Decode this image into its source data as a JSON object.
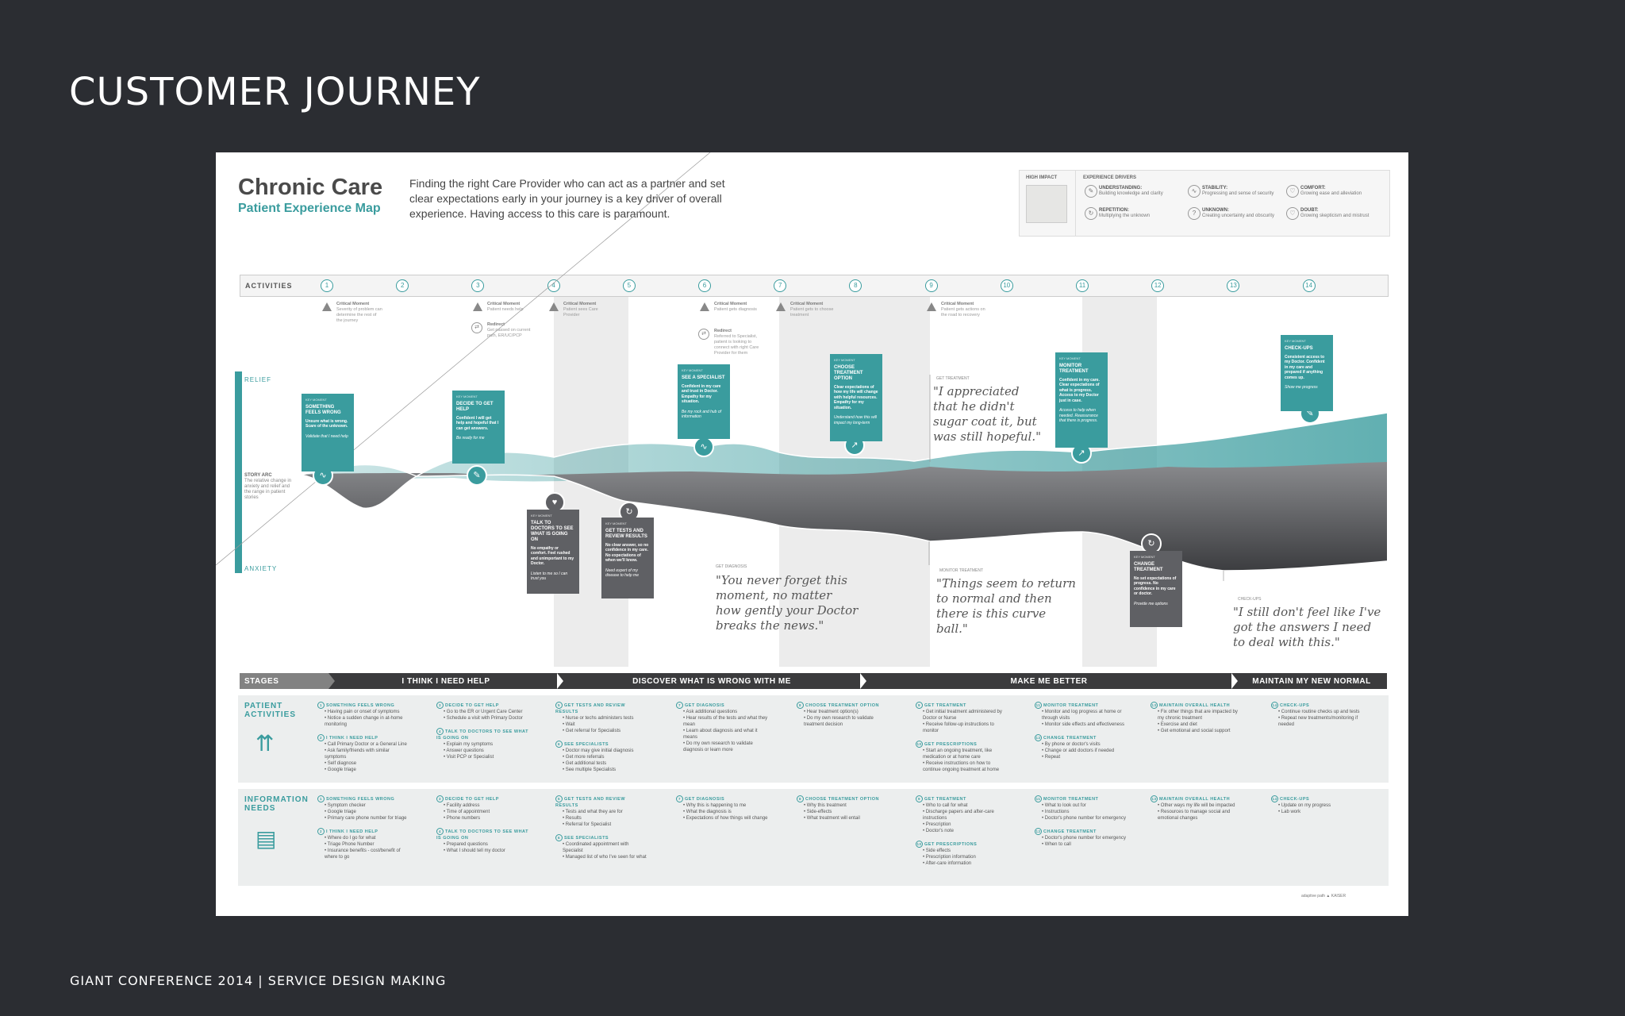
{
  "slide": {
    "title": "CUSTOMER JOURNEY",
    "footer": "GIANT CONFERENCE 2014 |  SERVICE DESIGN MAKING"
  },
  "poster": {
    "title": "Chronic Care",
    "subtitle": "Patient Experience Map",
    "intro": "Finding the right Care Provider who can act as a partner and set clear expectations early in your journey is a key driver of overall experience. Having access to this care is paramount."
  },
  "legend": {
    "high_impact": "HIGH IMPACT",
    "drivers_label": "EXPERIENCE DRIVERS",
    "drivers": [
      {
        "icon": "understanding-icon",
        "name": "UNDERSTANDING:",
        "desc": "Building knowledge and clarity"
      },
      {
        "icon": "stability-icon",
        "name": "STABILITY:",
        "desc": "Progressing and sense of security"
      },
      {
        "icon": "comfort-icon",
        "name": "COMFORT:",
        "desc": "Growing ease and alleviation"
      },
      {
        "icon": "repetition-icon",
        "name": "REPETITION:",
        "desc": "Multiplying the unknown"
      },
      {
        "icon": "unknown-icon",
        "name": "UNKNOWN:",
        "desc": "Creating uncertainty and obscurity"
      },
      {
        "icon": "doubt-icon",
        "name": "DOUBT:",
        "desc": "Growing skepticism and mistrust"
      }
    ]
  },
  "activities": {
    "label": "ACTIVITIES",
    "steps": [
      "1",
      "2",
      "3",
      "4",
      "5",
      "6",
      "7",
      "8",
      "9",
      "10",
      "11",
      "12",
      "13",
      "14"
    ]
  },
  "critical_moments": [
    {
      "title": "Critical Moment",
      "text": "Severity of problem can determine the rest of the journey"
    },
    {
      "title": "Critical Moment",
      "text": "Patient needs help"
    },
    {
      "title": "Critical Moment",
      "text": "Patient sees Care Provider"
    },
    {
      "title": "Critical Moment",
      "text": "Patient gets diagnosis"
    },
    {
      "title": "Critical Moment",
      "text": "Patient gets to choose treatment"
    },
    {
      "title": "Critical Moment",
      "text": "Patient gets actions on the road to recovery"
    }
  ],
  "redirects": [
    {
      "title": "Redirect",
      "text": "Get passed on current path, ER/UC/PCP"
    },
    {
      "title": "Redirect",
      "text": "Referred to Specialist, patient is looking to connect with right Care Provider for them"
    }
  ],
  "axis": {
    "relief": "RELIEF",
    "anxiety": "ANXIETY",
    "story_title": "STORY ARC",
    "story_text": "The relative change in anxiety and relief and the range in patient stories"
  },
  "cards": [
    {
      "label": "KEY MOMENT",
      "title": "SOMETHING FEELS WRONG",
      "text": "Unsure what is wrong. Scare of the unknown.",
      "need": "Validate that I need help"
    },
    {
      "label": "KEY MOMENT",
      "title": "DECIDE TO GET HELP",
      "text": "Confident I will get help and hopeful that I can get answers.",
      "need": "Be ready for me"
    },
    {
      "label": "KEY MOMENT",
      "title": "TALK TO DOCTORS TO SEE WHAT IS GOING ON",
      "text": "No empathy or comfort. Feel rushed and unimportant to my Doctor.",
      "need": "Listen to me so I can trust you"
    },
    {
      "label": "KEY MOMENT",
      "title": "GET TESTS AND REVIEW RESULTS",
      "text": "No clear answer, so no confidence in my care. No expectations of when we'll know.",
      "need": "Need expert of my disease to help me"
    },
    {
      "label": "KEY MOMENT",
      "title": "SEE A SPECIALIST",
      "text": "Confident in my care and trust in Doctor. Empathy for my situation.",
      "need": "Be my rock and hub of information"
    },
    {
      "label": "KEY MOMENT",
      "title": "CHOOSE TREATMENT OPTION",
      "text": "Clear expectations of how my life will change with helpful resources. Empathy for my situation.",
      "need": "Understand how this will impact my long-term"
    },
    {
      "label": "KEY MOMENT",
      "title": "MONITOR TREATMENT",
      "text": "Confident in my care. Clear expectations of what is progress. Access to my Doctor just in case.",
      "need": "Access to help when needed. Reassurance that there is progress."
    },
    {
      "label": "KEY MOMENT",
      "title": "CHANGE TREATMENT",
      "text": "No set expectations of progress. No confidence in my care or doctor.",
      "need": "Provide me options"
    },
    {
      "label": "KEY MOMENT",
      "title": "CHECK-UPS",
      "text": "Consistent access to my Doctor. Confident in my care and prepared if anything comes up.",
      "need": "Show me progress"
    }
  ],
  "quotes": [
    {
      "label": "GET TREATMENT",
      "text": "\"I appreciated that he didn't sugar coat it, but was still hopeful.\""
    },
    {
      "label": "GET DIAGNOSIS",
      "text": "\"You never forget this moment, no matter how gently your Doctor breaks the news.\""
    },
    {
      "label": "MONITOR TREATMENT",
      "text": "\"Things seem to return to normal and then there is this curve ball.\""
    },
    {
      "label": "CHECK-UPS",
      "text": "\"I still don't feel like I've got the answers I need to deal with this.\""
    }
  ],
  "stages": {
    "label": "STAGES",
    "items": [
      "I THINK I NEED HELP",
      "DISCOVER WHAT IS WRONG WITH ME",
      "MAKE ME BETTER",
      "MAINTAIN MY NEW NORMAL"
    ]
  },
  "patient_activities": {
    "title1": "PATIENT",
    "title2": "ACTIVITIES",
    "columns": [
      [
        {
          "n": "1",
          "h": "SOMETHING FEELS WRONG",
          "items": [
            "Having pain or onset of symptoms",
            "Notice a sudden change in at-home monitoring"
          ]
        },
        {
          "n": "2",
          "h": "I THINK I NEED HELP",
          "items": [
            "Call Primary Doctor or a General Line",
            "Ask family/friends with similar symptoms",
            "Self diagnose",
            "Google triage"
          ]
        }
      ],
      [
        {
          "n": "3",
          "h": "DECIDE TO GET HELP",
          "items": [
            "Go to the ER or Urgent Care Center",
            "Schedule a visit with Primary Doctor"
          ]
        },
        {
          "n": "4",
          "h": "TALK TO DOCTORS TO SEE WHAT IS GOING ON",
          "items": [
            "Explain my symptoms",
            "Answer questions",
            "Visit PCP or Specialist"
          ]
        }
      ],
      [
        {
          "n": "5",
          "h": "GET TESTS AND REVIEW RESULTS",
          "items": [
            "Nurse or techs administers tests",
            "Wait",
            "Get referral for Specialists"
          ]
        },
        {
          "n": "6",
          "h": "SEE SPECIALISTS",
          "items": [
            "Doctor may give initial diagnosis",
            "Get more referrals",
            "Get additional tests",
            "See multiple Specialists"
          ]
        }
      ],
      [
        {
          "n": "7",
          "h": "GET DIAGNOSIS",
          "items": [
            "Ask additional questions",
            "Hear results of the tests and what they mean",
            "Learn about diagnosis and what it means",
            "Do my own research to validate diagnosis or learn more"
          ]
        }
      ],
      [
        {
          "n": "8",
          "h": "CHOOSE TREATMENT OPTION",
          "items": [
            "Hear treatment option(s)",
            "Do my own research to validate treatment decision"
          ]
        }
      ],
      [
        {
          "n": "9",
          "h": "GET TREATMENT",
          "items": [
            "Get initial treatment administered by Doctor or Nurse",
            "Receive follow-up instructions to monitor"
          ]
        },
        {
          "n": "10",
          "h": "GET PRESCRIPTIONS",
          "items": [
            "Start an ongoing treatment, like medication or at home care",
            "Receive instructions on how to continue ongoing treatment at home"
          ]
        }
      ],
      [
        {
          "n": "11",
          "h": "MONITOR TREATMENT",
          "items": [
            "Monitor and log progress at home or through visits",
            "Monitor side effects and effectiveness"
          ]
        },
        {
          "n": "12",
          "h": "CHANGE TREATMENT",
          "items": [
            "By phone or doctor's visits",
            "Change or add doctors if needed",
            "Repeat"
          ]
        }
      ],
      [
        {
          "n": "13",
          "h": "MAINTAIN OVERALL HEALTH",
          "items": [
            "Fix other things that are impacted by my chronic treatment",
            "Exercise and diet",
            "Get emotional and social support"
          ]
        }
      ],
      [
        {
          "n": "14",
          "h": "CHECK-UPS",
          "items": [
            "Continue routine checks up and tests",
            "Repeat new treatments/monitoring if needed"
          ]
        }
      ]
    ]
  },
  "information_needs": {
    "title1": "INFORMATION",
    "title2": "NEEDS",
    "columns": [
      [
        {
          "n": "1",
          "h": "SOMETHING FEELS WRONG",
          "items": [
            "Symptom checker",
            "Google triage",
            "Primary care phone number for triage"
          ]
        },
        {
          "n": "2",
          "h": "I THINK I NEED HELP",
          "items": [
            "Where do I go for what",
            "Triage Phone Number",
            "Insurance benefits - cost/benefit of where to go"
          ]
        }
      ],
      [
        {
          "n": "3",
          "h": "DECIDE TO GET HELP",
          "items": [
            "Facility address",
            "Time of appointment",
            "Phone numbers"
          ]
        },
        {
          "n": "4",
          "h": "TALK TO DOCTORS TO SEE WHAT IS GOING ON",
          "items": [
            "Prepared questions",
            "What I should tell my doctor"
          ]
        }
      ],
      [
        {
          "n": "5",
          "h": "GET TESTS AND REVIEW RESULTS",
          "items": [
            "Tests and what they are for",
            "Results",
            "Referral for Specialist"
          ]
        },
        {
          "n": "6",
          "h": "SEE SPECIALISTS",
          "items": [
            "Coordinated appointment with Specialist",
            "Managed list of who I've seen for what"
          ]
        }
      ],
      [
        {
          "n": "7",
          "h": "GET DIAGNOSIS",
          "items": [
            "Why this is happening to me",
            "What the diagnosis is",
            "Expectations of how things will change"
          ]
        }
      ],
      [
        {
          "n": "8",
          "h": "CHOOSE TREATMENT OPTION",
          "items": [
            "Why this treatment",
            "Side-effects",
            "What treatment will entail"
          ]
        }
      ],
      [
        {
          "n": "9",
          "h": "GET TREATMENT",
          "items": [
            "Who to call for what",
            "Discharge papers and after-care instructions",
            "Prescription",
            "Doctor's note"
          ]
        },
        {
          "n": "10",
          "h": "GET PRESCRIPTIONS",
          "items": [
            "Side effects",
            "Prescription information",
            "After-care information"
          ]
        }
      ],
      [
        {
          "n": "11",
          "h": "MONITOR TREATMENT",
          "items": [
            "What to look out for",
            "Instructions",
            "Doctor's phone number for emergency"
          ]
        },
        {
          "n": "12",
          "h": "CHANGE TREATMENT",
          "items": [
            "Doctor's phone number for emergency",
            "When to call"
          ]
        }
      ],
      [
        {
          "n": "13",
          "h": "MAINTAIN OVERALL HEALTH",
          "items": [
            "Other ways my life will be impacted",
            "Resources to manage social and emotional changes"
          ]
        }
      ],
      [
        {
          "n": "14",
          "h": "CHECK-UPS",
          "items": [
            "Update on my progress",
            "Lab work"
          ]
        }
      ]
    ]
  },
  "logos": {
    "left": "adaptive path",
    "right": "KAISER"
  },
  "colors": {
    "teal": "#3a9c9e",
    "dark": "#5f6064",
    "background": "#2b2d32"
  }
}
